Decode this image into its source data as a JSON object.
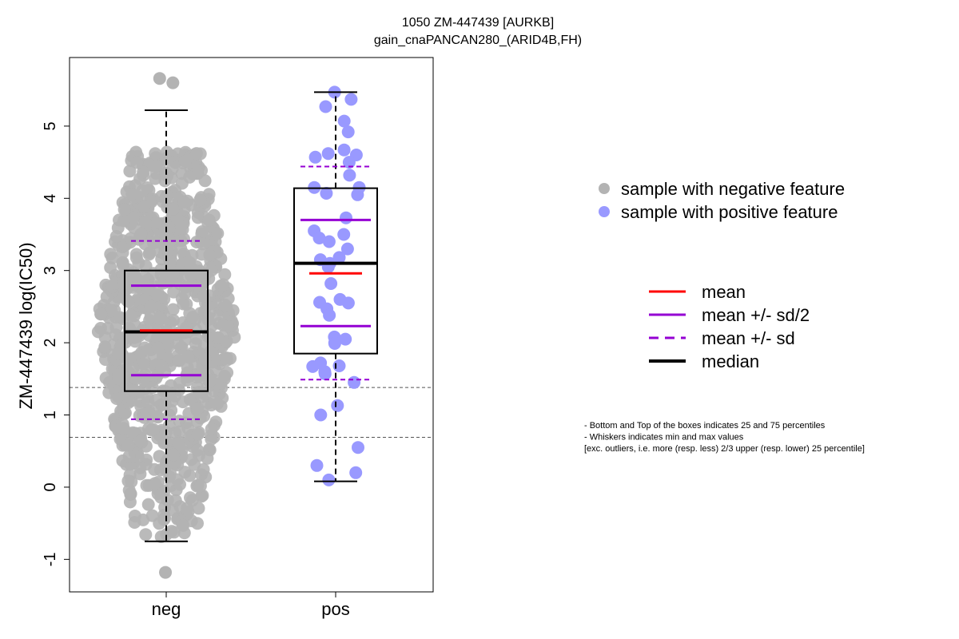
{
  "chart_data": {
    "type": "scatter",
    "title": "1050 ZM-447439 [AURKB]",
    "subtitle": "gain_cnaPANCAN280_(ARID4B,FH)",
    "xlabel": "",
    "ylabel": "ZM-447439 log(IC50)",
    "categories": [
      "neg",
      "pos"
    ],
    "ylim": [
      -1.45,
      5.95
    ],
    "yticks": [
      "-1",
      "0",
      "1",
      "2",
      "3",
      "4",
      "5"
    ],
    "reference_lines": [
      1.38,
      0.69
    ],
    "groups": [
      {
        "name": "neg",
        "color": "#b3b3b3",
        "n": 880,
        "box": {
          "q1": 1.33,
          "median": 2.15,
          "q3": 3.0,
          "whisker_low": -0.75,
          "whisker_high": 5.22
        },
        "mean": 2.17,
        "mean_sd2": [
          1.55,
          2.79
        ],
        "mean_sd": [
          0.94,
          3.41
        ],
        "outliers": [
          5.6,
          5.66,
          -1.18
        ]
      },
      {
        "name": "pos",
        "color": "#9999ff",
        "box": {
          "q1": 1.85,
          "median": 3.1,
          "q3": 4.14,
          "whisker_low": 0.08,
          "whisker_high": 5.47
        },
        "mean": 2.96,
        "mean_sd2": [
          2.23,
          3.7
        ],
        "mean_sd": [
          1.49,
          4.44
        ],
        "points": [
          5.47,
          5.37,
          5.27,
          5.07,
          4.92,
          4.67,
          4.62,
          4.6,
          4.57,
          4.5,
          4.32,
          4.15,
          4.15,
          4.07,
          4.05,
          3.73,
          3.55,
          3.5,
          3.45,
          3.4,
          3.3,
          3.18,
          3.15,
          3.1,
          3.05,
          2.82,
          2.6,
          2.56,
          2.55,
          2.47,
          2.38,
          2.08,
          2.05,
          2.0,
          1.99,
          1.72,
          1.68,
          1.67,
          1.6,
          1.57,
          1.45,
          1.13,
          1.0,
          0.55,
          0.3,
          0.2,
          0.1
        ]
      }
    ],
    "legend_points": [
      {
        "label": "sample with negative feature",
        "color": "#b3b3b3"
      },
      {
        "label": "sample with positive feature",
        "color": "#9999ff"
      }
    ],
    "legend_lines": [
      {
        "label": "mean",
        "color": "#ff0000",
        "style": "solid"
      },
      {
        "label": "mean +/- sd/2",
        "color": "#9400d3",
        "style": "solid"
      },
      {
        "label": "mean +/- sd",
        "color": "#9400d3",
        "style": "dashed"
      },
      {
        "label": "median",
        "color": "#000000",
        "style": "solid"
      }
    ],
    "notes": [
      "- Bottom and Top of the boxes indicates 25 and 75 percentiles",
      "- Whiskers indicates min and max values",
      "[exc. outliers, i.e. more (resp. less) 2/3 upper (resp. lower) 25 percentile]"
    ]
  }
}
